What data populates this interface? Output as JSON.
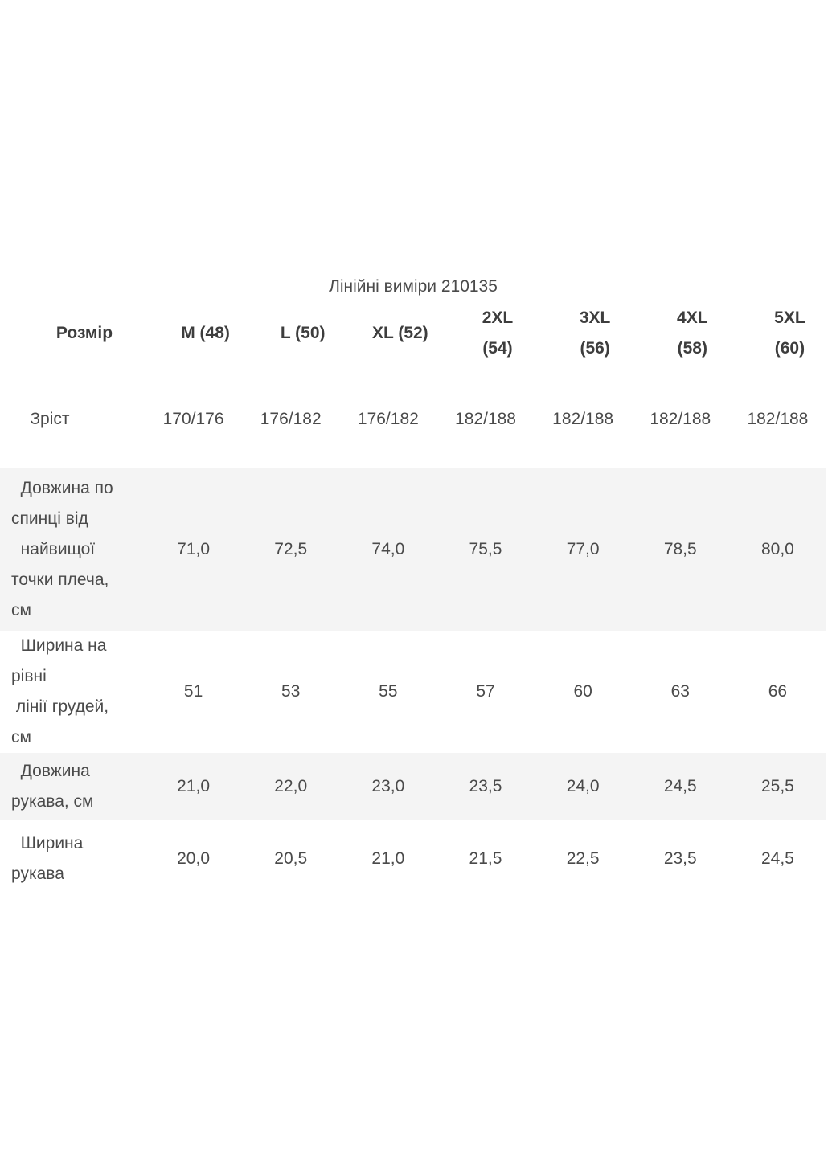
{
  "colors": {
    "shaded_row_bg": "#f4f4f4",
    "body_text": "#4a4a4a",
    "header_text": "#3d3d3d",
    "page_bg": "#ffffff"
  },
  "chart_data": {
    "type": "table",
    "title": "Лінійні виміри 210135",
    "columns": [
      "Розмір",
      "M (48)",
      "L (50)",
      "XL (52)",
      "2XL (54)",
      "3XL (56)",
      "4XL (58)",
      "5XL (60)"
    ],
    "rows": [
      {
        "label": "Зріст",
        "values": [
          "170/176",
          "176/182",
          "176/182",
          "182/188",
          "182/188",
          "182/188",
          "182/188"
        ]
      },
      {
        "label": "Довжина по спинці від найвищої точки плеча, см",
        "values": [
          "71,0",
          "72,5",
          "74,0",
          "75,5",
          "77,0",
          "78,5",
          "80,0"
        ]
      },
      {
        "label": "Ширина на рівні лінії грудей, см",
        "values": [
          "51",
          "53",
          "55",
          "57",
          "60",
          "63",
          "66"
        ]
      },
      {
        "label": "Довжина рукава, см",
        "values": [
          "21,0",
          "22,0",
          "23,0",
          "23,5",
          "24,0",
          "24,5",
          "25,5"
        ]
      },
      {
        "label": "Ширина рукава",
        "values": [
          "20,0",
          "20,5",
          "21,0",
          "21,5",
          "22,5",
          "23,5",
          "24,5"
        ]
      }
    ],
    "layout": {
      "grid": false,
      "shaded_row_indices": [
        1,
        3
      ],
      "header_style": "bold"
    }
  },
  "table": {
    "header_display": [
      "Розмір",
      "M (48)",
      "L (50)",
      "XL (52)",
      "2XL\n(54)",
      "3XL\n(56)",
      "4XL\n(58)",
      "5XL\n(60)"
    ],
    "row_labels_display": [
      "    Зріст",
      "  Довжина по\nспинці від\n  найвищої\nточки плеча,\nсм",
      "  Ширина на\nрівні\n лінії грудей,\nсм",
      "  Довжина\nрукава, см",
      "  Ширина\nрукава"
    ],
    "shaded_rows": [
      false,
      true,
      false,
      true,
      false
    ]
  }
}
